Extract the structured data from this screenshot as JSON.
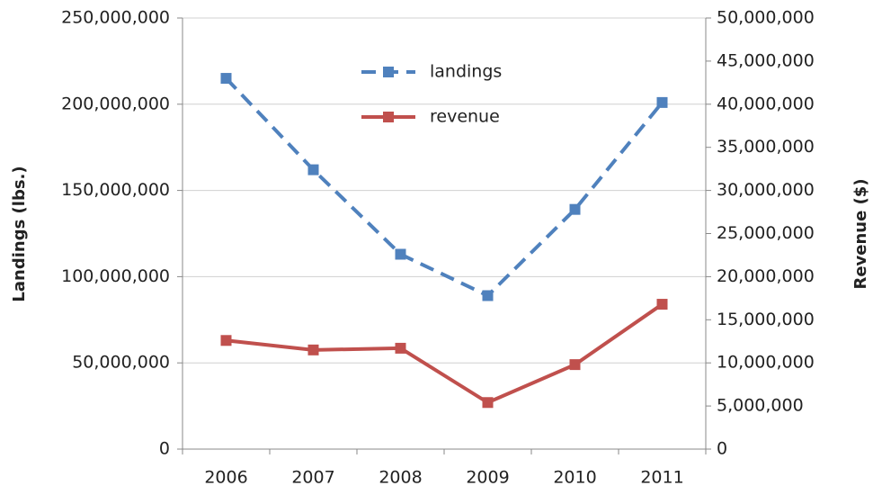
{
  "chart_data": {
    "type": "line",
    "categories": [
      "2006",
      "2007",
      "2008",
      "2009",
      "2010",
      "2011"
    ],
    "y_label": "Landings (lbs.)",
    "y2_label": "Revenue ($)",
    "series": [
      {
        "name": "landings",
        "color": "#4f81bd",
        "dash": true,
        "values": [
          215000000,
          162000000,
          113000000,
          89000000,
          139000000,
          201000000
        ]
      },
      {
        "name": "revenue",
        "color": "#c0504d",
        "dash": false,
        "axis": "y2",
        "values": [
          12600000,
          11500000,
          11700000,
          5400000,
          9800000,
          16800000
        ]
      }
    ],
    "ylim": [
      0,
      250000000
    ],
    "yticks": [
      0,
      {
        "value": 50000000,
        "label": "50,000,000"
      },
      {
        "value": 100000000,
        "label": "100,000,000"
      },
      {
        "value": 150000000,
        "label": "150,000,000"
      },
      {
        "value": 200000000,
        "label": "200,000,000"
      },
      {
        "value": 250000000,
        "label": "250,000,000"
      }
    ],
    "y2lim": [
      0,
      50000000
    ],
    "y2ticks": [
      0,
      {
        "value": 5000000,
        "label": "5,000,000"
      },
      {
        "value": 10000000,
        "label": "10,000,000"
      },
      {
        "value": 15000000,
        "label": "15,000,000"
      },
      {
        "value": 20000000,
        "label": "20,000,000"
      },
      {
        "value": 25000000,
        "label": "25,000,000"
      },
      {
        "value": 30000000,
        "label": "30,000,000"
      },
      {
        "value": 35000000,
        "label": "35,000,000"
      },
      {
        "value": 40000000,
        "label": "40,000,000"
      },
      {
        "value": 45000000,
        "label": "45,000,000"
      },
      {
        "value": 50000000,
        "label": "50,000,000"
      }
    ],
    "grid": true,
    "legend": "top"
  }
}
